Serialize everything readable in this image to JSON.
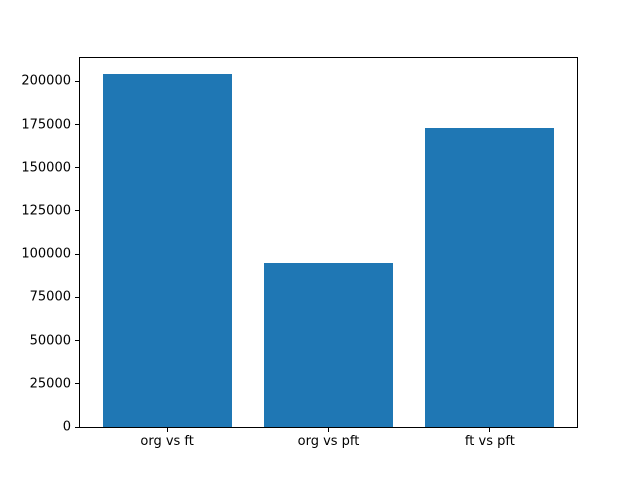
{
  "chart_data": {
    "type": "bar",
    "title": "",
    "xlabel": "",
    "ylabel": "",
    "categories": [
      "org vs ft",
      "org vs pft",
      "ft vs pft"
    ],
    "values": [
      204000,
      95000,
      173000
    ],
    "yticks": [
      0,
      25000,
      50000,
      75000,
      100000,
      125000,
      150000,
      175000,
      200000
    ],
    "ylim": [
      0,
      213500
    ],
    "xlim": [
      -0.54,
      2.54
    ],
    "bar_width": 0.8,
    "bar_color": "#1f77b4",
    "grid": false,
    "legend": null
  },
  "figure": {
    "background": "#ffffff",
    "spine_color": "#000000",
    "text_color": "#000000"
  }
}
